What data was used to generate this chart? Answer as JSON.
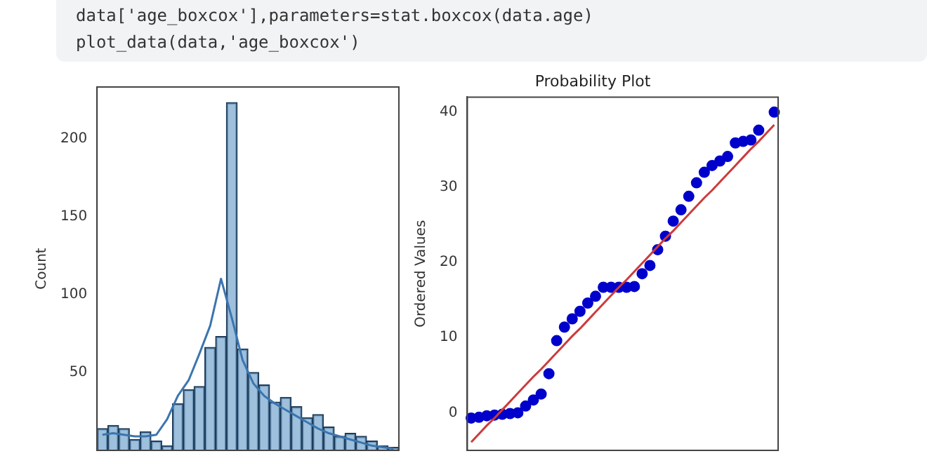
{
  "chart_data": [
    {
      "type": "bar",
      "ylabel": "Count",
      "annotations": [
        "data['age_boxcox'],parameters=stat.boxcox(data.age)",
        "plot_data(data,'age_boxcox')"
      ],
      "categories": [
        null,
        null,
        null,
        null,
        null,
        null,
        null,
        null,
        null,
        null,
        null,
        null,
        null,
        null,
        null,
        null,
        null,
        null,
        null,
        null,
        null,
        null,
        null,
        null,
        null,
        null,
        null,
        null
      ],
      "series": [
        {
          "color": "#86b0d4",
          "values": [
            14,
            16,
            14,
            7,
            12,
            6,
            3,
            30,
            39,
            41,
            66,
            73,
            223,
            65,
            50,
            42,
            31,
            34,
            28,
            21,
            23,
            15,
            9,
            11,
            9,
            6,
            3,
            2
          ]
        },
        {
          "type": "line",
          "marker": "none",
          "color": "#3b75af",
          "values": [
            10,
            11,
            10,
            9,
            9,
            10,
            20,
            35,
            45,
            62,
            80,
            110,
            85,
            58,
            43,
            35,
            30,
            26,
            22,
            18,
            14,
            11,
            9,
            7,
            5,
            3,
            2,
            1
          ]
        }
      ],
      "ylim": [
        0,
        233
      ],
      "yticks": [
        50,
        100,
        150,
        200
      ],
      "tick_labels": "y",
      "legend": false
    },
    {
      "type": "scatter",
      "title": "Probability Plot",
      "ylabel": "Ordered Values",
      "categories": [
        null,
        null,
        null,
        null,
        null,
        null,
        null,
        null,
        null,
        null,
        null,
        null,
        null,
        null,
        null,
        null,
        null,
        null,
        null,
        null,
        null,
        null,
        null,
        null,
        null,
        null,
        null,
        null,
        null,
        null,
        null,
        null,
        null,
        null,
        null,
        null,
        null,
        null,
        null,
        null
      ],
      "series": [
        {
          "marker": "circle",
          "color": "#0000cc",
          "values": [
            -0.7,
            -0.6,
            -0.4,
            -0.3,
            -0.2,
            -0.1,
            0.0,
            0.9,
            1.7,
            2.5,
            5.2,
            9.6,
            11.4,
            12.5,
            13.5,
            14.6,
            15.5,
            16.7,
            16.7,
            16.7,
            16.7,
            16.8,
            18.5,
            19.6,
            21.7,
            23.5,
            25.5,
            27.0,
            28.8,
            30.6,
            32.0,
            32.9,
            33.5,
            34.1,
            35.9,
            36.1,
            36.3,
            37.6,
            null,
            40.0
          ]
        },
        {
          "type": "line",
          "marker": "none",
          "color": "#cc3b3b",
          "values": [
            -3.9,
            -2.8,
            -1.7,
            -0.7,
            0.4,
            1.5,
            2.6,
            3.7,
            4.8,
            5.8,
            6.9,
            8.0,
            9.1,
            10.2,
            11.2,
            12.3,
            13.4,
            14.5,
            15.6,
            16.7,
            17.7,
            18.8,
            19.9,
            21.0,
            22.1,
            23.2,
            24.2,
            25.3,
            26.4,
            27.5,
            28.6,
            29.6,
            30.7,
            31.8,
            32.9,
            34.0,
            35.1,
            36.1,
            37.2,
            38.3
          ]
        }
      ],
      "ylim": [
        -5,
        42
      ],
      "yticks": [
        0,
        10,
        20,
        30,
        40
      ],
      "tick_labels": "y",
      "legend": false
    }
  ]
}
